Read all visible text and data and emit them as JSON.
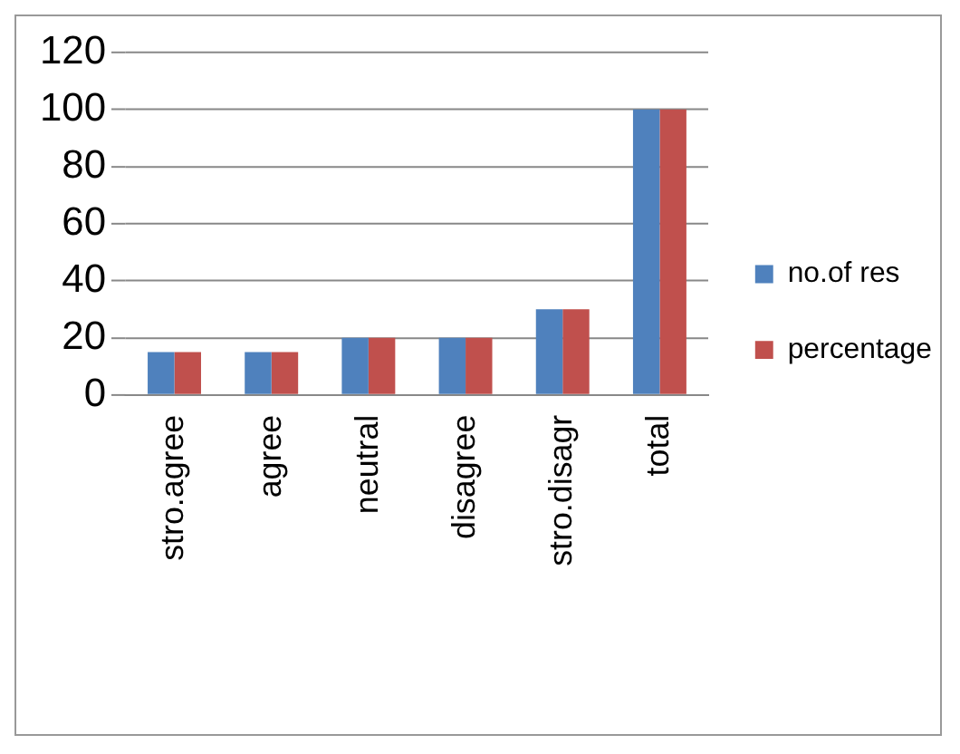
{
  "chart_data": {
    "type": "bar",
    "categories": [
      "stro.agree",
      "agree",
      "neutral",
      "disagree",
      "stro.disagr",
      "total"
    ],
    "series": [
      {
        "name": "no.of res",
        "color": "#4f81bd",
        "values": [
          15,
          15,
          20,
          20,
          30,
          100
        ]
      },
      {
        "name": "percentage",
        "color": "#c0504d",
        "values": [
          15,
          15,
          20,
          20,
          30,
          100
        ]
      }
    ],
    "ylim": [
      0,
      120
    ],
    "yticks": [
      0,
      20,
      40,
      60,
      80,
      100,
      120
    ],
    "grid": "y",
    "legend": "right"
  }
}
